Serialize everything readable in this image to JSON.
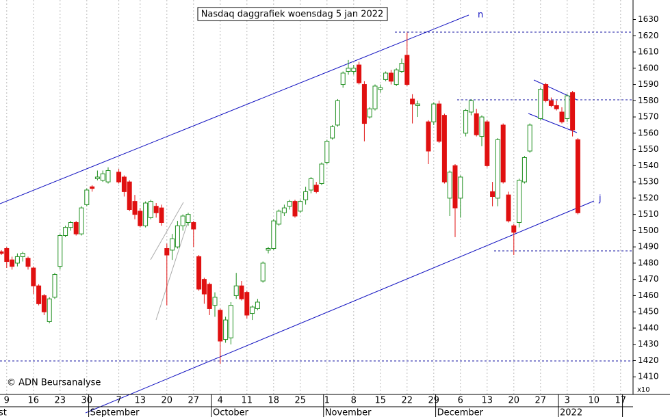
{
  "chart_data": {
    "type": "candlestick",
    "title": "Nasdaq daggrafiek woensdag 5 jan 2022",
    "categories": [
      null,
      "9",
      null,
      null,
      null,
      null,
      "16",
      null,
      null,
      null,
      null,
      "23",
      null,
      null,
      null,
      null,
      "30",
      null,
      null,
      null,
      null,
      null,
      "7",
      null,
      null,
      null,
      "13",
      null,
      null,
      null,
      null,
      "20",
      null,
      null,
      null,
      null,
      "27",
      null,
      null,
      null,
      null,
      "4",
      null,
      null,
      null,
      null,
      "11",
      null,
      null,
      null,
      null,
      "18",
      null,
      null,
      null,
      null,
      "25",
      null,
      null,
      null,
      null,
      "1",
      null,
      null,
      null,
      null,
      "8",
      null,
      null,
      null,
      null,
      "15",
      null,
      null,
      null,
      null,
      "22",
      null,
      null,
      null,
      null,
      "29",
      null,
      null,
      null,
      null,
      "6",
      null,
      null,
      null,
      null,
      "13",
      null,
      null,
      null,
      null,
      "20",
      null,
      null,
      null,
      null,
      "27",
      null,
      null,
      null,
      null,
      "3",
      null,
      null,
      null,
      null,
      "10",
      null,
      null,
      null,
      null,
      "17",
      null
    ],
    "months": [
      "st",
      null,
      null,
      null,
      null,
      null,
      null,
      null,
      null,
      null,
      null,
      null,
      null,
      null,
      null,
      null,
      null,
      "September",
      null,
      null,
      null,
      null,
      null,
      null,
      null,
      null,
      null,
      null,
      null,
      null,
      null,
      null,
      null,
      null,
      null,
      null,
      null,
      null,
      null,
      null,
      "October",
      null,
      null,
      null,
      null,
      null,
      null,
      null,
      null,
      null,
      null,
      null,
      null,
      null,
      null,
      null,
      null,
      null,
      null,
      null,
      null,
      "November",
      null,
      null,
      null,
      null,
      null,
      null,
      null,
      null,
      null,
      null,
      null,
      null,
      null,
      null,
      null,
      null,
      null,
      null,
      null,
      null,
      "December",
      null,
      null,
      null,
      null,
      null,
      null,
      null,
      null,
      null,
      null,
      null,
      null,
      null,
      null,
      null,
      null,
      null,
      null,
      null,
      null,
      null,
      null,
      "2022",
      null,
      null,
      null,
      null,
      null,
      null,
      null,
      null,
      null,
      null,
      null
    ],
    "open": [
      1487,
      1489,
      1482,
      1480,
      1484,
      1483,
      1477,
      1466,
      1460,
      1444,
      1459,
      1478,
      1497,
      1502,
      1505,
      1498,
      1516,
      1527,
      1532,
      1531,
      1530,
      null,
      1536,
      1533,
      1530,
      1518,
      1512,
      1503,
      1508,
      1515,
      1514,
      1489,
      1488,
      1490,
      1503,
      1505,
      1505,
      1484,
      1470,
      1467,
      1454,
      1451,
      1433,
      1434,
      1460,
      1466,
      1462,
      1449,
      1452,
      1469,
      1488,
      1489,
      1504,
      1511,
      1515,
      1518,
      1512,
      1519,
      1525,
      1528,
      1529,
      1542,
      1557,
      1565,
      1590,
      1598,
      1598,
      1602,
      1590,
      1570,
      1575,
      1587,
      1593,
      1597,
      1590,
      1598,
      1608,
      1581,
      1577,
      null,
      1567,
      1567,
      1578,
      1571,
      1520,
      1540,
      1520,
      1560,
      1573,
      1572,
      1558,
      1567,
      1524,
      1520,
      1565,
      1522,
      1503,
      1505,
      1530,
      1549,
      null,
      1569,
      1590,
      1580,
      1577,
      1573,
      1569,
      1585,
      1556,
      null,
      null,
      null,
      null,
      null,
      null,
      null,
      null,
      null
    ],
    "high": [
      1488,
      1490,
      1484,
      1486,
      1487,
      1484,
      1478,
      1467,
      1461,
      1459,
      1474,
      1498,
      1503,
      1506,
      1506,
      1515,
      1526,
      1528,
      1537,
      1537,
      1539,
      null,
      1538,
      1534,
      1531,
      1522,
      1514,
      1518,
      1519,
      1517,
      1516,
      1492,
      1498,
      1506,
      1510,
      1511,
      1506,
      1485,
      1471,
      1468,
      1462,
      1452,
      1447,
      1456,
      1474,
      1469,
      1463,
      1454,
      1458,
      1481,
      1490,
      1507,
      1513,
      1516,
      1519,
      1519,
      1519,
      1527,
      1533,
      1530,
      1542,
      1556,
      1565,
      1581,
      1598,
      1605,
      1602,
      1604,
      1592,
      1576,
      1590,
      1590,
      1598,
      1599,
      1600,
      1606,
      1622,
      1584,
      1580,
      null,
      1568,
      1579,
      1580,
      1572,
      1537,
      1541,
      1534,
      1575,
      1581,
      1575,
      1571,
      1568,
      1530,
      1557,
      1566,
      1524,
      1504,
      1532,
      1546,
      1566,
      null,
      1588,
      1591,
      1582,
      1580,
      1576,
      1584,
      1586,
      1557,
      null,
      null,
      null,
      null,
      null,
      null,
      null,
      null,
      null
    ],
    "low": [
      1485,
      1477,
      1476,
      1478,
      1481,
      1476,
      1461,
      1454,
      1448,
      1443,
      1458,
      1476,
      1496,
      1500,
      1497,
      1497,
      1515,
      1524,
      1531,
      1530,
      1529,
      null,
      1529,
      1521,
      1512,
      1507,
      1502,
      1502,
      1507,
      1508,
      1503,
      1454,
      1482,
      1489,
      1500,
      1503,
      1490,
      1463,
      1455,
      1448,
      1447,
      1418,
      1431,
      1430,
      1458,
      1457,
      1446,
      1445,
      1451,
      1468,
      1486,
      1488,
      1503,
      1509,
      1513,
      1508,
      1511,
      1516,
      1523,
      1523,
      1528,
      1541,
      1556,
      1564,
      1588,
      1596,
      1596,
      1590,
      1555,
      1569,
      1574,
      1585,
      1592,
      1590,
      1589,
      1597,
      1589,
      1566,
      1570,
      null,
      1541,
      1565,
      1554,
      1529,
      1509,
      1496,
      1508,
      1558,
      1571,
      1558,
      1552,
      1539,
      1515,
      1515,
      1529,
      1505,
      1485,
      1502,
      1529,
      1548,
      null,
      1568,
      1579,
      1576,
      1574,
      1566,
      1567,
      1558,
      1510,
      null,
      null,
      null,
      null,
      null,
      null,
      null,
      null,
      null
    ],
    "close": [
      1486,
      1481,
      1478,
      1484,
      1486,
      1478,
      1466,
      1455,
      1450,
      1458,
      1473,
      1497,
      1502,
      1505,
      1498,
      1514,
      1525,
      1526,
      1533,
      1535,
      1537,
      null,
      1530,
      1524,
      1513,
      1510,
      1503,
      1517,
      1518,
      1511,
      1505,
      1485,
      1495,
      1503,
      1509,
      1510,
      1501,
      1464,
      1461,
      1452,
      1459,
      1432,
      1445,
      1454,
      1466,
      1458,
      1448,
      1453,
      1456,
      1480,
      1489,
      1506,
      1512,
      1514,
      1518,
      1509,
      1518,
      1524,
      1532,
      1524,
      1541,
      1555,
      1564,
      1580,
      1597,
      1600,
      1600,
      1591,
      1566,
      1575,
      1589,
      1588,
      1597,
      1592,
      1599,
      1603,
      1590,
      1578,
      1578,
      null,
      1549,
      1578,
      1555,
      1530,
      1536,
      1514,
      1533,
      1574,
      1580,
      1559,
      1570,
      1540,
      1521,
      1556,
      1530,
      1506,
      1499,
      1531,
      1545,
      1565,
      null,
      1587,
      1580,
      1577,
      1575,
      1567,
      1583,
      1562,
      1511,
      null,
      null,
      null,
      null,
      null,
      null,
      null,
      null,
      null
    ],
    "up_color": "#1f8f1f",
    "down_color": "#e01010",
    "ylim": [
      1400,
      1642
    ],
    "yticks": [
      1410,
      1420,
      1430,
      1440,
      1450,
      1460,
      1470,
      1480,
      1490,
      1500,
      1510,
      1520,
      1530,
      1540,
      1550,
      1560,
      1570,
      1580,
      1590,
      1600,
      1610,
      1620,
      1630
    ],
    "y_unit": "x10",
    "grid": true,
    "annotations": {
      "upper_trend": "n",
      "lower_trend": "j"
    },
    "footer": "© ADN Beursanalyse"
  }
}
